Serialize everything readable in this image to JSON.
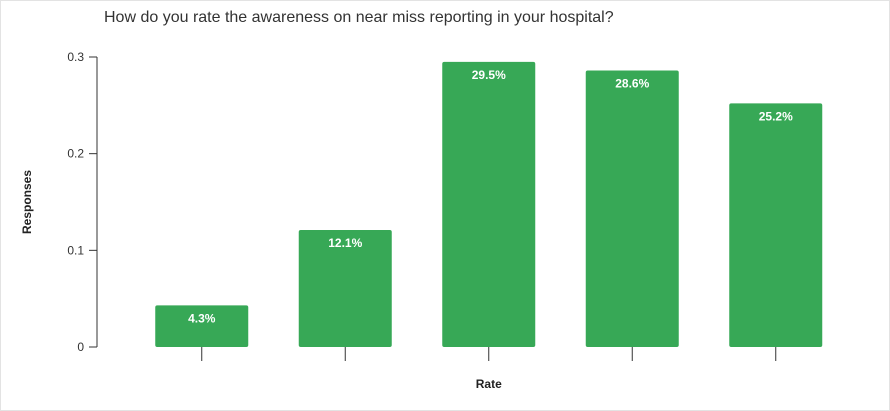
{
  "chart_data": {
    "type": "bar",
    "title": "How do you rate the awareness on near miss reporting in your hospital?",
    "xlabel": "Rate",
    "ylabel": "Responses",
    "categories": [
      "",
      "",
      "",
      "",
      ""
    ],
    "values": [
      0.043,
      0.121,
      0.295,
      0.286,
      0.252
    ],
    "data_labels": [
      "4.3%",
      "12.1%",
      "29.5%",
      "28.6%",
      "25.2%"
    ],
    "ylim": [
      0,
      0.3
    ],
    "yticks": [
      0,
      0.1,
      0.2,
      0.3
    ],
    "ytick_labels": [
      "0",
      "0.1",
      "0.2",
      "0.3"
    ],
    "grid": false,
    "bar_color": "#37a856"
  }
}
